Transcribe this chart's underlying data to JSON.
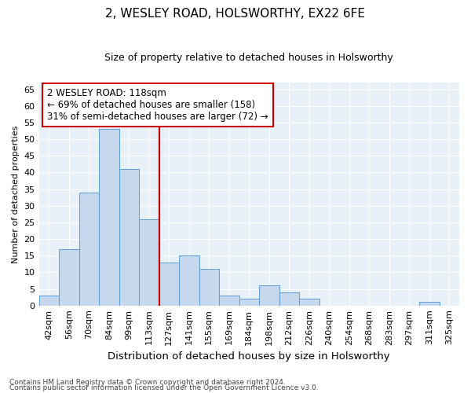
{
  "title1": "2, WESLEY ROAD, HOLSWORTHY, EX22 6FE",
  "title2": "Size of property relative to detached houses in Holsworthy",
  "xlabel": "Distribution of detached houses by size in Holsworthy",
  "ylabel": "Number of detached properties",
  "categories": [
    "42sqm",
    "56sqm",
    "70sqm",
    "84sqm",
    "99sqm",
    "113sqm",
    "127sqm",
    "141sqm",
    "155sqm",
    "169sqm",
    "184sqm",
    "198sqm",
    "212sqm",
    "226sqm",
    "240sqm",
    "254sqm",
    "268sqm",
    "283sqm",
    "297sqm",
    "311sqm",
    "325sqm"
  ],
  "values": [
    3,
    17,
    34,
    53,
    41,
    26,
    13,
    15,
    11,
    3,
    2,
    6,
    4,
    2,
    0,
    0,
    0,
    0,
    0,
    1,
    0
  ],
  "bar_color": "#c5d8ed",
  "bar_edge_color": "#5b9bd5",
  "vline_x": 5.5,
  "vline_color": "#cc0000",
  "annotation_text": "2 WESLEY ROAD: 118sqm\n← 69% of detached houses are smaller (158)\n31% of semi-detached houses are larger (72) →",
  "annotation_box_color": "#ffffff",
  "annotation_box_edge_color": "#cc0000",
  "ylim": [
    0,
    67
  ],
  "yticks": [
    0,
    5,
    10,
    15,
    20,
    25,
    30,
    35,
    40,
    45,
    50,
    55,
    60,
    65
  ],
  "footer1": "Contains HM Land Registry data © Crown copyright and database right 2024.",
  "footer2": "Contains public sector information licensed under the Open Government Licence v3.0.",
  "plot_bg_color": "#e8f0f8",
  "grid_color": "#ffffff",
  "title1_fontsize": 11,
  "title2_fontsize": 9,
  "xlabel_fontsize": 9.5,
  "ylabel_fontsize": 8,
  "tick_fontsize": 8,
  "annotation_fontsize": 8.5,
  "footer_fontsize": 6.5
}
